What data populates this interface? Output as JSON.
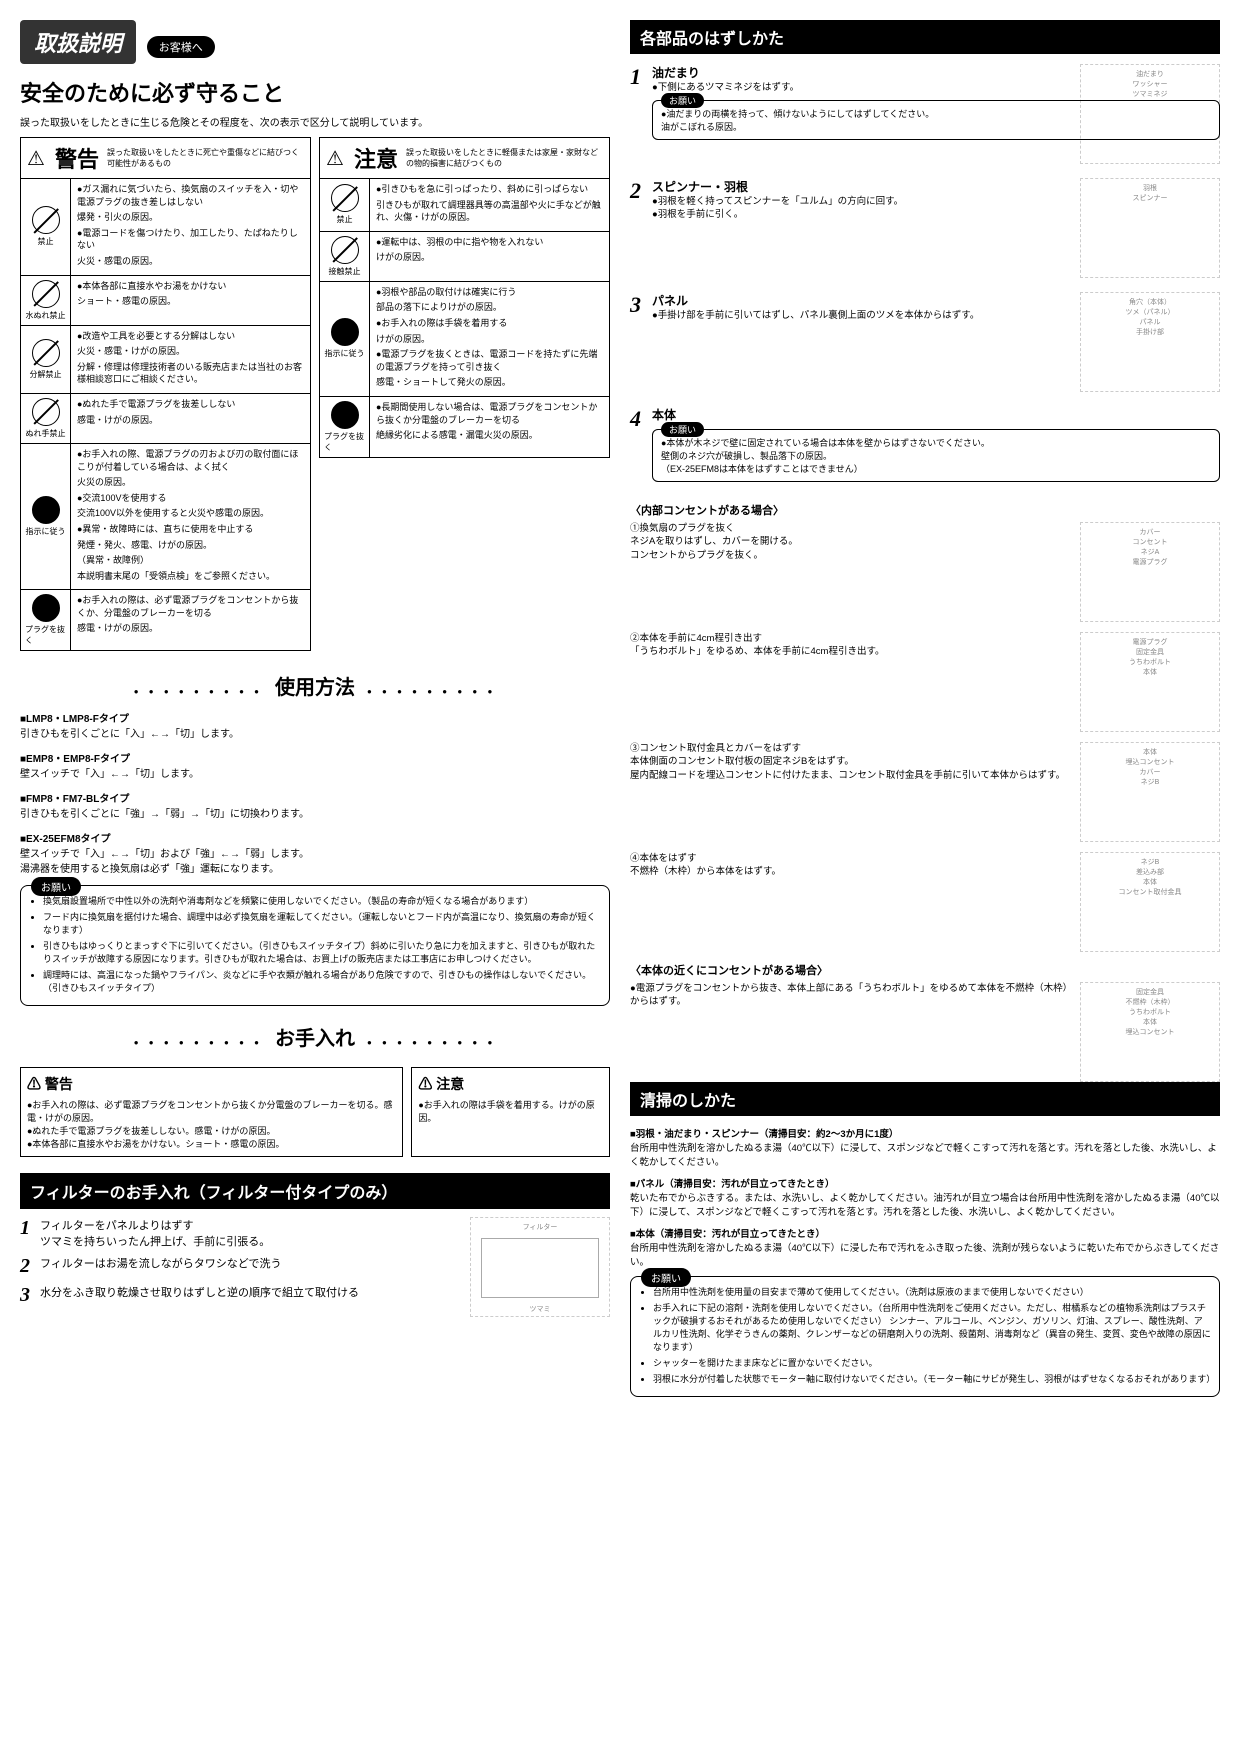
{
  "header": {
    "title": "取扱説明",
    "customer_label": "お客様へ"
  },
  "safety": {
    "title": "安全のために必ず守ること",
    "intro": "誤った取扱いをしたときに生じる危険とその程度を、次の表示で区分して説明しています。"
  },
  "warning_box": {
    "label": "警告",
    "desc": "誤った取扱いをしたときに死亡や重傷などに結びつく可能性があるもの",
    "rows": [
      {
        "icon_label": "禁止",
        "items": [
          "●ガス漏れに気づいたら、換気扇のスイッチを入・切や電源プラグの抜き差しはしない",
          "爆発・引火の原因。",
          "●電源コードを傷つけたり、加工したり、たばねたりしない",
          "火災・感電の原因。"
        ]
      },
      {
        "icon_label": "水ぬれ禁止",
        "items": [
          "●本体各部に直接水やお湯をかけない",
          "ショート・感電の原因。"
        ]
      },
      {
        "icon_label": "分解禁止",
        "items": [
          "●改造や工具を必要とする分解はしない",
          "火災・感電・けがの原因。",
          "分解・修理は修理技術者のいる販売店または当社のお客様相談窓口にご相談ください。"
        ]
      },
      {
        "icon_label": "ぬれ手禁止",
        "items": [
          "●ぬれた手で電源プラグを抜差ししない",
          "感電・けがの原因。"
        ]
      },
      {
        "icon_label": "指示に従う",
        "items": [
          "●お手入れの際、電源プラグの刃および刃の取付面にほこりが付着している場合は、よく拭く",
          "火災の原因。",
          "●交流100Vを使用する",
          "交流100V以外を使用すると火災や感電の原因。",
          "●異常・故障時には、直ちに使用を中止する",
          "発煙・発火、感電、けがの原因。",
          "（異常・故障例）",
          "本説明書末尾の「受領点検」をご参照ください。"
        ]
      },
      {
        "icon_label": "プラグを抜く",
        "items": [
          "●お手入れの際は、必ず電源プラグをコンセントから抜くか、分電盤のブレーカーを切る",
          "感電・けがの原因。"
        ]
      }
    ]
  },
  "caution_box": {
    "label": "注意",
    "desc": "誤った取扱いをしたときに軽傷または家屋・家財などの物的損害に結びつくもの",
    "rows": [
      {
        "icon_label": "禁止",
        "items": [
          "●引きひもを急に引っぱったり、斜めに引っぱらない",
          "引きひもが取れて調理器具等の高温部や火に手などが触れ、火傷・けがの原因。"
        ]
      },
      {
        "icon_label": "接触禁止",
        "items": [
          "●運転中は、羽根の中に指や物を入れない",
          "けがの原因。"
        ]
      },
      {
        "icon_label": "指示に従う",
        "items": [
          "●羽根や部品の取付けは確実に行う",
          "部品の落下によりけがの原因。",
          "●お手入れの際は手袋を着用する",
          "けがの原因。",
          "●電源プラグを抜くときは、電源コードを持たずに先端の電源プラグを持って引き抜く",
          "感電・ショートして発火の原因。"
        ]
      },
      {
        "icon_label": "プラグを抜く",
        "items": [
          "●長期間使用しない場合は、電源プラグをコンセントから抜くか分電盤のブレーカーを切る",
          "絶縁劣化による感電・漏電火災の原因。"
        ]
      }
    ]
  },
  "usage": {
    "title": "使用方法",
    "types": [
      {
        "hdr": "■LMP8・LMP8-Fタイプ",
        "text": "引きひもを引くごとに「入」←→「切」します。"
      },
      {
        "hdr": "■EMP8・EMP8-Fタイプ",
        "text": "壁スイッチで「入」←→「切」します。"
      },
      {
        "hdr": "■FMP8・FM7-BLタイプ",
        "text": "引きひもを引くごとに「強」→「弱」→「切」に切換わります。"
      },
      {
        "hdr": "■EX-25EFM8タイプ",
        "text": "壁スイッチで「入」←→「切」および「強」←→「弱」します。\n湯沸器を使用すると換気扇は必ず「強」運転になります。"
      }
    ],
    "onegai": [
      "換気扇設置場所で中性以外の洗剤や消毒剤などを頻繁に使用しないでください。（製品の寿命が短くなる場合があります）",
      "フード内に換気扇を据付けた場合、調理中は必ず換気扇を運転してください。（運転しないとフード内が高温になり、換気扇の寿命が短くなります）",
      "引きひもはゆっくりとまっすぐ下に引いてください。（引きひもスイッチタイプ）斜めに引いたり急に力を加えますと、引きひもが取れたりスイッチが故障する原因になります。引きひもが取れた場合は、お買上げの販売店または工事店にお申しつけください。",
      "調理時には、高温になった鍋やフライパン、炎などに手や衣類が触れる場合があり危険ですので、引きひもの操作はしないでください。（引きひもスイッチタイプ）"
    ]
  },
  "maintenance": {
    "title": "お手入れ",
    "warning": {
      "label": "警告",
      "items": [
        "●お手入れの際は、必ず電源プラグをコンセントから抜くか分電盤のブレーカーを切る。感電・けがの原因。",
        "●ぬれた手で電源プラグを抜差ししない。感電・けがの原因。",
        "●本体各部に直接水やお湯をかけない。ショート・感電の原因。"
      ]
    },
    "caution": {
      "label": "注意",
      "items": [
        "●お手入れの際は手袋を着用する。けがの原因。"
      ]
    }
  },
  "filter": {
    "title": "フィルターのお手入れ（フィルター付タイプのみ）",
    "steps": [
      {
        "num": "1",
        "text": "フィルターをパネルよりはずす\nツマミを持ちいったん押上げ、手前に引張る。"
      },
      {
        "num": "2",
        "text": "フィルターはお湯を流しながらタワシなどで洗う"
      },
      {
        "num": "3",
        "text": "水分をふき取り乾燥させ取りはずしと逆の順序で組立て取付ける"
      }
    ],
    "diagram_labels": {
      "filter": "フィルター",
      "tab": "ツマミ"
    }
  },
  "parts": {
    "title": "各部品のはずしかた",
    "items": [
      {
        "num": "1",
        "title": "油だまり",
        "text": "●下側にあるツマミネジをはずす。",
        "onegai": "●油だまりの両横を持って、傾けないようにしてはずしてください。\n油がこぼれる原因。",
        "labels": [
          "油だまり",
          "ワッシャー",
          "ツマミネジ"
        ]
      },
      {
        "num": "2",
        "title": "スピンナー・羽根",
        "text": "●羽根を軽く持ってスピンナーを「ユルム」の方向に回す。\n●羽根を手前に引く。",
        "labels": [
          "羽根",
          "スピンナー"
        ]
      },
      {
        "num": "3",
        "title": "パネル",
        "text": "●手掛け部を手前に引いてはずし、パネル裏側上面のツメを本体からはずす。",
        "labels": [
          "角穴（本体）",
          "ツメ（パネル）",
          "パネル",
          "手掛け部"
        ]
      },
      {
        "num": "4",
        "title": "本体",
        "onegai": "●本体が木ネジで壁に固定されている場合は本体を壁からはずさないでください。\n壁側のネジ穴が破損し、製品落下の原因。\n（EX-25EFM8は本体をはずすことはできません）"
      }
    ],
    "internal_outlet": {
      "title": "〈内部コンセントがある場合〉",
      "steps": [
        "①換気扇のプラグを抜く\nネジAを取りはずし、カバーを開ける。\nコンセントからプラグを抜く。",
        "②本体を手前に4cm程引き出す\n「うちわボルト」をゆるめ、本体を手前に4cm程引き出す。",
        "③コンセント取付金具とカバーをはずす\n本体側面のコンセント取付板の固定ネジBをはずす。\n屋内配線コードを埋込コンセントに付けたまま、コンセント取付金具を手前に引いて本体からはずす。",
        "④本体をはずす\n不燃枠（木枠）から本体をはずす。"
      ],
      "labels": [
        "カバー",
        "コンセント",
        "ネジA",
        "電源プラグ",
        "固定金具",
        "うちわボルト",
        "本体",
        "埋込コンセント",
        "カバー",
        "ネジB",
        "差込み部",
        "本体",
        "コンセント取付金具"
      ]
    },
    "nearby_outlet": {
      "title": "〈本体の近くにコンセントがある場合〉",
      "text": "●電源プラグをコンセントから抜き、本体上部にある「うちわボルト」をゆるめて本体を不燃枠（木枠）からはずす。",
      "labels": [
        "固定金具",
        "不燃枠（木枠）",
        "うちわボルト",
        "本体",
        "埋込コンセント"
      ]
    }
  },
  "cleaning": {
    "title": "清掃のしかた",
    "items": [
      {
        "hdr": "■羽根・油だまり・スピンナー（清掃目安：約2〜3か月に1度）",
        "text": "台所用中性洗剤を溶かしたぬるま湯（40℃以下）に浸して、スポンジなどで軽くこすって汚れを落とす。汚れを落とした後、水洗いし、よく乾かしてください。"
      },
      {
        "hdr": "■パネル（清掃目安：汚れが目立ってきたとき）",
        "text": "乾いた布でからぶきする。または、水洗いし、よく乾かしてください。油汚れが目立つ場合は台所用中性洗剤を溶かしたぬるま湯（40℃以下）に浸して、スポンジなどで軽くこすって汚れを落とす。汚れを落とした後、水洗いし、よく乾かしてください。"
      },
      {
        "hdr": "■本体（清掃目安：汚れが目立ってきたとき）",
        "text": "台所用中性洗剤を溶かしたぬるま湯（40℃以下）に浸した布で汚れをふき取った後、洗剤が残らないように乾いた布でからぶきしてください。"
      }
    ],
    "onegai": [
      "台所用中性洗剤を使用量の目安まで薄めて使用してください。（洗剤は原液のままで使用しないでください）",
      "お手入れに下記の溶剤・洗剤を使用しないでください。（台所用中性洗剤をご使用ください。ただし、柑橘系などの植物系洗剤はプラスチックが破損するおそれがあるため使用しないでください）\nシンナー、アルコール、ベンジン、ガソリン、灯油、スプレー、酸性洗剤、アルカリ性洗剤、化学ぞうきんの薬剤、クレンザーなどの研磨剤入りの洗剤、殺菌剤、消毒剤など（異音の発生、変質、変色や故障の原因になります）",
      "シャッターを開けたまま床などに置かないでください。",
      "羽根に水分が付着した状態でモーター軸に取付けないでください。（モーター軸にサビが発生し、羽根がはずせなくなるおそれがあります）"
    ]
  },
  "onegai_label": "お願い"
}
